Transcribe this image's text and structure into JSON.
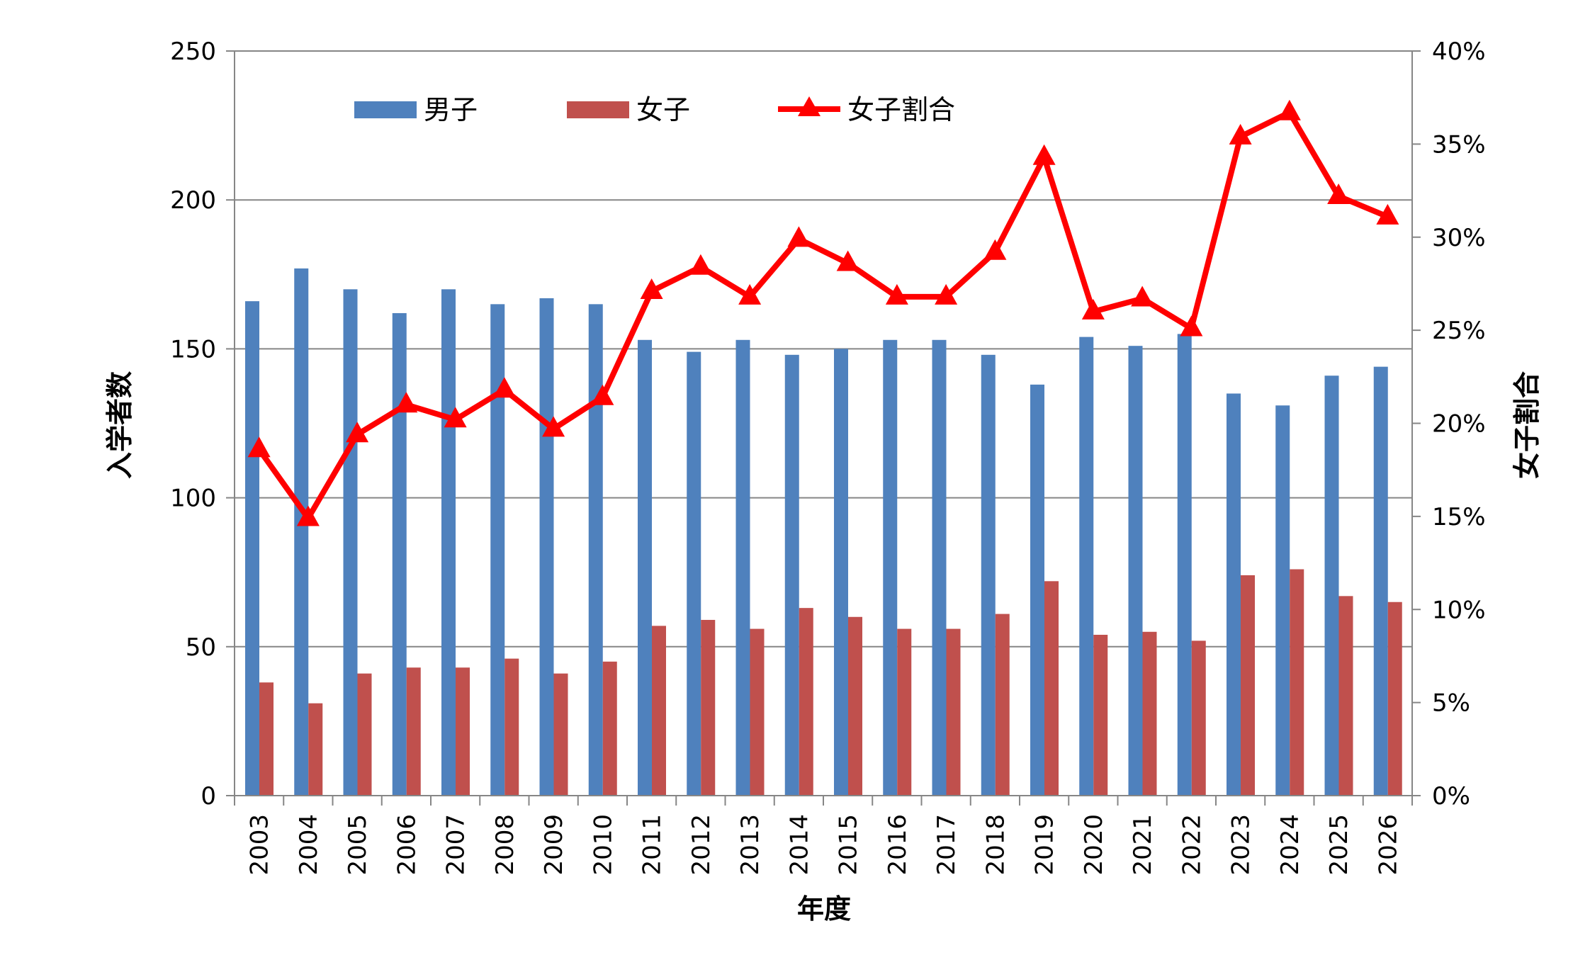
{
  "chart_data": {
    "type": "bar",
    "title": "",
    "xlabel": "年度",
    "ylabel": "入学者数",
    "y2label": "女子割合",
    "categories": [
      "2003",
      "2004",
      "2005",
      "2006",
      "2007",
      "2008",
      "2009",
      "2010",
      "2011",
      "2012",
      "2013",
      "2014",
      "2015",
      "2016",
      "2017",
      "2018",
      "2019",
      "2020",
      "2021",
      "2022",
      "2023",
      "2024",
      "2025",
      "2026"
    ],
    "series": [
      {
        "name": "男子",
        "type": "bar",
        "axis": "left",
        "color": "#4F81BD",
        "values": [
          166,
          177,
          170,
          162,
          170,
          165,
          167,
          165,
          153,
          149,
          153,
          148,
          150,
          153,
          153,
          148,
          138,
          154,
          151,
          155,
          135,
          131,
          141,
          144
        ]
      },
      {
        "name": "女子",
        "type": "bar",
        "axis": "left",
        "color": "#C0504D",
        "values": [
          38,
          31,
          41,
          43,
          43,
          46,
          41,
          45,
          57,
          59,
          56,
          63,
          60,
          56,
          56,
          61,
          72,
          54,
          55,
          52,
          74,
          76,
          67,
          65
        ]
      },
      {
        "name": "女子割合",
        "type": "line",
        "axis": "right",
        "color": "#FF0000",
        "marker": "triangle",
        "values": [
          0.186,
          0.149,
          0.194,
          0.21,
          0.202,
          0.218,
          0.197,
          0.214,
          0.271,
          0.284,
          0.268,
          0.299,
          0.286,
          0.268,
          0.268,
          0.292,
          0.343,
          0.26,
          0.267,
          0.251,
          0.354,
          0.367,
          0.322,
          0.311
        ]
      }
    ],
    "ylim": [
      0,
      250
    ],
    "yticks": [
      "0",
      "50",
      "100",
      "150",
      "200",
      "250"
    ],
    "y2lim": [
      0,
      0.4
    ],
    "y2ticks": [
      "0%",
      "5%",
      "10%",
      "15%",
      "20%",
      "25%",
      "30%",
      "35%",
      "40%"
    ],
    "grid": true,
    "legend_position": "top-left"
  }
}
